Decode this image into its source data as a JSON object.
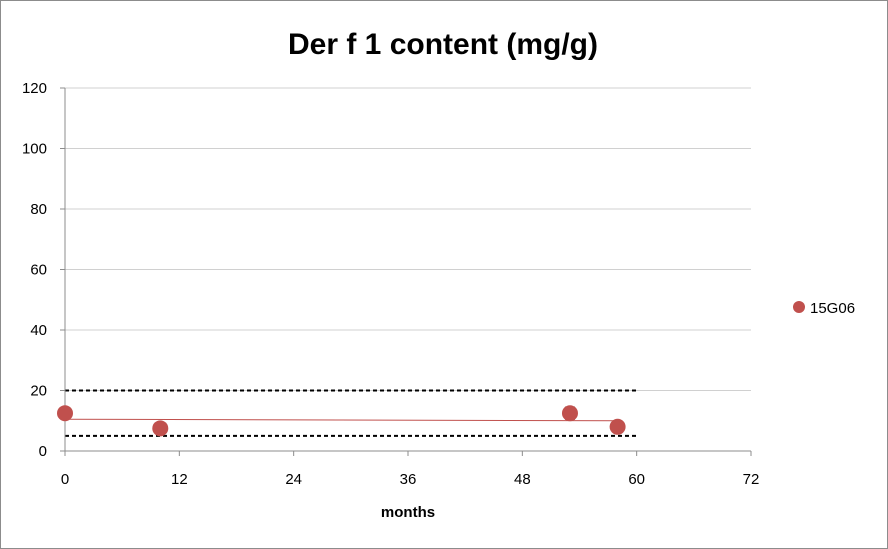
{
  "chart_data": {
    "type": "scatter",
    "title": "Der f 1 content (mg/g)",
    "xlabel": "months",
    "ylabel": "",
    "xlim": [
      0,
      72
    ],
    "ylim": [
      0,
      120
    ],
    "xticks": [
      0,
      12,
      24,
      36,
      48,
      60,
      72
    ],
    "yticks": [
      0,
      20,
      40,
      60,
      80,
      100,
      120
    ],
    "x_tick_labels": [
      "0",
      "12",
      "24",
      "36",
      "48",
      "60",
      "72"
    ],
    "y_tick_labels": [
      "0",
      "20",
      "40",
      "60",
      "80",
      "100",
      "120"
    ],
    "grid": "horizontal",
    "legend_position": "right",
    "series": [
      {
        "name": "15G06",
        "color": "#c0504d",
        "points": [
          {
            "x": 0,
            "y": 12.5,
            "err": 0
          },
          {
            "x": 10,
            "y": 7.5,
            "err": 0
          },
          {
            "x": 53,
            "y": 12.5,
            "err": 2
          },
          {
            "x": 58,
            "y": 8,
            "err": 0
          }
        ],
        "trendline": {
          "x": [
            0,
            58
          ],
          "y": [
            10.5,
            10
          ]
        }
      }
    ],
    "reference_lines": [
      {
        "y": 20,
        "x_range": [
          0,
          60
        ],
        "style": "dashed",
        "color": "#000000"
      },
      {
        "y": 5,
        "x_range": [
          0,
          60
        ],
        "style": "dashed",
        "color": "#000000"
      }
    ]
  }
}
